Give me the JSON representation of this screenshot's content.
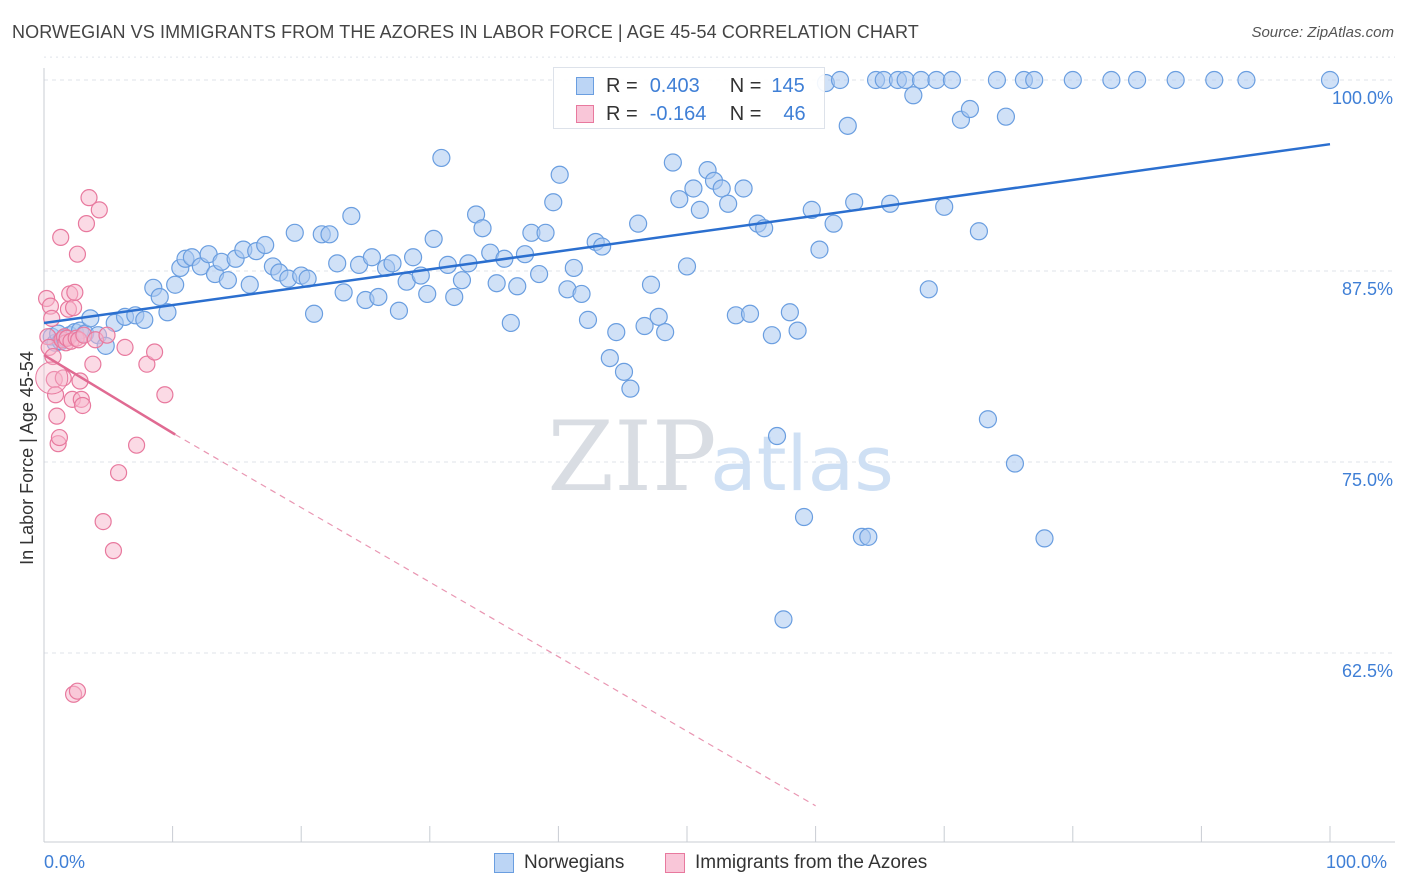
{
  "title": "NORWEGIAN VS IMMIGRANTS FROM THE AZORES IN LABOR FORCE | AGE 45-54 CORRELATION CHART",
  "source": "Source: ZipAtlas.com",
  "watermark": {
    "zip": "ZIP",
    "atlas": "atlas"
  },
  "legend": {
    "r_label": "R =",
    "n_label": "N =",
    "series1": {
      "r": "0.403",
      "n": "145"
    },
    "series2": {
      "r": "-0.164",
      "n": "46"
    }
  },
  "colors": {
    "blue_fill": "#a9c8f0",
    "blue_stroke": "#6a9ee0",
    "blue_line": "#2b6fcf",
    "pink_fill": "#f7b6cc",
    "pink_stroke": "#e8799e",
    "pink_line": "#e06a92",
    "axis_label": "#3f7fd6",
    "grid": "#dfe3ea"
  },
  "chart_data": {
    "type": "scatter",
    "title": "NORWEGIAN VS IMMIGRANTS FROM THE AZORES IN LABOR FORCE | AGE 45-54 CORRELATION CHART",
    "xlabel": "",
    "ylabel": "In Labor Force | Age 45-54",
    "xlim": [
      0,
      100
    ],
    "ylim": [
      52.5,
      101.5
    ],
    "x_tick_labels": [
      "0.0%",
      "100.0%"
    ],
    "y_ticks": [
      62.5,
      75.0,
      87.5,
      100.0
    ],
    "y_tick_labels": [
      "62.5%",
      "75.0%",
      "87.5%",
      "100.0%"
    ],
    "legend_position": "top-center",
    "series": [
      {
        "name": "Norwegians",
        "r": 0.403,
        "n": 145,
        "trend": {
          "x": [
            0,
            100
          ],
          "y": [
            84.1,
            95.8
          ]
        },
        "points": [
          [
            0.6,
            83.2
          ],
          [
            0.9,
            82.8
          ],
          [
            1.1,
            83.4
          ],
          [
            1.3,
            82.9
          ],
          [
            1.6,
            83.1
          ],
          [
            2.0,
            83.3
          ],
          [
            2.4,
            83.5
          ],
          [
            2.8,
            83.6
          ],
          [
            3.2,
            83.4
          ],
          [
            3.6,
            84.4
          ],
          [
            4.2,
            83.3
          ],
          [
            4.8,
            82.6
          ],
          [
            5.5,
            84.1
          ],
          [
            6.3,
            84.5
          ],
          [
            7.1,
            84.6
          ],
          [
            7.8,
            84.3
          ],
          [
            8.5,
            86.4
          ],
          [
            9.0,
            85.8
          ],
          [
            9.6,
            84.8
          ],
          [
            10.2,
            86.6
          ],
          [
            10.6,
            87.7
          ],
          [
            11.0,
            88.3
          ],
          [
            11.5,
            88.4
          ],
          [
            12.2,
            87.8
          ],
          [
            12.8,
            88.6
          ],
          [
            13.3,
            87.3
          ],
          [
            13.8,
            88.1
          ],
          [
            14.3,
            86.9
          ],
          [
            14.9,
            88.3
          ],
          [
            15.5,
            88.9
          ],
          [
            16.0,
            86.6
          ],
          [
            16.5,
            88.8
          ],
          [
            17.2,
            89.2
          ],
          [
            17.8,
            87.8
          ],
          [
            18.3,
            87.4
          ],
          [
            19.0,
            87.0
          ],
          [
            19.5,
            90.0
          ],
          [
            20.0,
            87.2
          ],
          [
            20.5,
            87.0
          ],
          [
            21.0,
            84.7
          ],
          [
            21.6,
            89.9
          ],
          [
            22.2,
            89.9
          ],
          [
            22.8,
            88.0
          ],
          [
            23.3,
            86.1
          ],
          [
            23.9,
            91.1
          ],
          [
            24.5,
            87.9
          ],
          [
            25.0,
            85.6
          ],
          [
            25.5,
            88.4
          ],
          [
            26.0,
            85.8
          ],
          [
            26.6,
            87.7
          ],
          [
            27.1,
            88.0
          ],
          [
            27.6,
            84.9
          ],
          [
            28.2,
            86.8
          ],
          [
            28.7,
            88.4
          ],
          [
            29.3,
            87.2
          ],
          [
            29.8,
            86.0
          ],
          [
            30.3,
            89.6
          ],
          [
            30.9,
            94.9
          ],
          [
            31.4,
            87.9
          ],
          [
            31.9,
            85.8
          ],
          [
            32.5,
            86.9
          ],
          [
            33.0,
            88.0
          ],
          [
            33.6,
            91.2
          ],
          [
            34.1,
            90.3
          ],
          [
            34.7,
            88.7
          ],
          [
            35.2,
            86.7
          ],
          [
            35.8,
            88.3
          ],
          [
            36.3,
            84.1
          ],
          [
            36.8,
            86.5
          ],
          [
            37.4,
            88.6
          ],
          [
            37.9,
            90.0
          ],
          [
            38.5,
            87.3
          ],
          [
            39.0,
            90.0
          ],
          [
            39.6,
            92.0
          ],
          [
            40.1,
            93.8
          ],
          [
            40.7,
            86.3
          ],
          [
            41.2,
            87.7
          ],
          [
            41.8,
            86.0
          ],
          [
            42.3,
            84.3
          ],
          [
            42.9,
            89.4
          ],
          [
            43.4,
            89.1
          ],
          [
            44.0,
            81.8
          ],
          [
            44.5,
            83.5
          ],
          [
            45.1,
            80.9
          ],
          [
            45.6,
            79.8
          ],
          [
            46.2,
            90.6
          ],
          [
            46.7,
            83.9
          ],
          [
            47.2,
            86.6
          ],
          [
            47.8,
            84.5
          ],
          [
            48.3,
            83.5
          ],
          [
            48.9,
            94.6
          ],
          [
            49.4,
            92.2
          ],
          [
            50.0,
            87.8
          ],
          [
            50.5,
            92.9
          ],
          [
            51.0,
            91.5
          ],
          [
            51.6,
            94.1
          ],
          [
            52.1,
            93.4
          ],
          [
            52.7,
            92.9
          ],
          [
            53.2,
            91.9
          ],
          [
            53.8,
            84.6
          ],
          [
            54.4,
            92.9
          ],
          [
            54.9,
            84.7
          ],
          [
            55.5,
            90.6
          ],
          [
            56.0,
            90.3
          ],
          [
            56.6,
            83.3
          ],
          [
            57.0,
            76.7
          ],
          [
            57.5,
            64.7
          ],
          [
            58.0,
            84.8
          ],
          [
            58.6,
            83.6
          ],
          [
            59.1,
            71.4
          ],
          [
            59.7,
            91.5
          ],
          [
            60.3,
            88.9
          ],
          [
            60.8,
            99.8
          ],
          [
            61.4,
            90.6
          ],
          [
            61.9,
            100.0
          ],
          [
            62.5,
            97.0
          ],
          [
            63.0,
            92.0
          ],
          [
            63.6,
            70.1
          ],
          [
            64.1,
            70.1
          ],
          [
            64.7,
            100.0
          ],
          [
            65.3,
            100.0
          ],
          [
            65.8,
            91.9
          ],
          [
            66.4,
            100.0
          ],
          [
            67.0,
            100.0
          ],
          [
            67.6,
            99.0
          ],
          [
            68.2,
            100.0
          ],
          [
            68.8,
            86.3
          ],
          [
            69.4,
            100.0
          ],
          [
            70.0,
            91.7
          ],
          [
            70.6,
            100.0
          ],
          [
            71.3,
            97.4
          ],
          [
            72.0,
            98.1
          ],
          [
            72.7,
            90.1
          ],
          [
            73.4,
            77.8
          ],
          [
            74.1,
            100.0
          ],
          [
            74.8,
            97.6
          ],
          [
            75.5,
            74.9
          ],
          [
            76.2,
            100.0
          ],
          [
            77.0,
            100.0
          ],
          [
            77.8,
            70.0
          ],
          [
            80.0,
            100.0
          ],
          [
            83.0,
            100.0
          ],
          [
            85.0,
            100.0
          ],
          [
            88.0,
            100.0
          ],
          [
            91.0,
            100.0
          ],
          [
            93.5,
            100.0
          ],
          [
            100.0,
            100.0
          ]
        ]
      },
      {
        "name": "Immigrants from the Azores",
        "r": -0.164,
        "n": 46,
        "trend": {
          "x": [
            0,
            10.2
          ],
          "y": [
            82.0,
            76.8
          ]
        },
        "trend_extension": {
          "x": [
            10.2,
            60.0
          ],
          "y": [
            76.8,
            52.5
          ]
        },
        "points": [
          [
            0.2,
            85.7
          ],
          [
            0.3,
            83.2
          ],
          [
            0.4,
            82.5
          ],
          [
            0.5,
            85.2
          ],
          [
            0.6,
            84.4
          ],
          [
            0.7,
            81.9
          ],
          [
            0.8,
            80.4
          ],
          [
            0.9,
            79.4
          ],
          [
            1.0,
            78.0
          ],
          [
            1.1,
            76.2
          ],
          [
            1.2,
            76.6
          ],
          [
            1.3,
            89.7
          ],
          [
            1.4,
            83.0
          ],
          [
            1.5,
            80.5
          ],
          [
            1.6,
            83.2
          ],
          [
            1.7,
            82.8
          ],
          [
            1.8,
            83.1
          ],
          [
            1.9,
            85.0
          ],
          [
            2.0,
            86.0
          ],
          [
            2.1,
            82.9
          ],
          [
            2.2,
            79.1
          ],
          [
            2.3,
            85.1
          ],
          [
            2.4,
            86.1
          ],
          [
            2.5,
            83.1
          ],
          [
            2.6,
            88.6
          ],
          [
            2.7,
            83.0
          ],
          [
            2.8,
            80.3
          ],
          [
            2.9,
            79.1
          ],
          [
            3.0,
            78.7
          ],
          [
            3.1,
            83.3
          ],
          [
            3.3,
            90.6
          ],
          [
            3.5,
            92.3
          ],
          [
            3.8,
            81.4
          ],
          [
            4.0,
            83.0
          ],
          [
            4.3,
            91.5
          ],
          [
            4.6,
            71.1
          ],
          [
            4.9,
            83.3
          ],
          [
            5.4,
            69.2
          ],
          [
            5.8,
            74.3
          ],
          [
            6.3,
            82.5
          ],
          [
            7.2,
            76.1
          ],
          [
            8.0,
            81.4
          ],
          [
            8.6,
            82.2
          ],
          [
            9.4,
            79.4
          ],
          [
            2.3,
            59.8
          ],
          [
            2.6,
            60.0
          ]
        ]
      }
    ]
  },
  "bottom_legend": {
    "series1": "Norwegians",
    "series2": "Immigrants from the Azores"
  },
  "x_axis": {
    "left_label": "0.0%",
    "right_label": "100.0%"
  }
}
